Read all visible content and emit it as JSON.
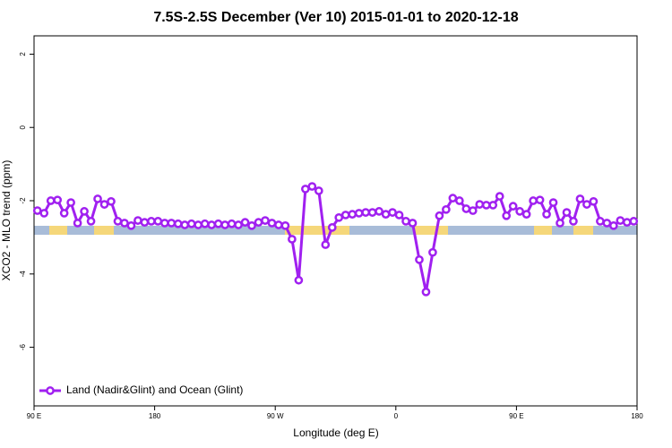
{
  "chart_data": {
    "type": "line",
    "title": "7.5S-2.5S December (Ver 10)   2015-01-01 to 2020-12-18",
    "xlabel": "Longitude (deg E)",
    "ylabel": "XCO2 - MLO trend (ppm)",
    "xlim": [
      90,
      540
    ],
    "ylim": [
      -7.6,
      2.5
    ],
    "xticks": [
      {
        "value": 90,
        "label": "90 E"
      },
      180,
      {
        "value": 270,
        "label": "90 W"
      },
      {
        "value": 360,
        "label": "0"
      },
      {
        "value": 450,
        "label": "90 E"
      },
      {
        "value": 540,
        "label": "180"
      }
    ],
    "yticks": [
      2,
      0,
      -2,
      -4,
      -6
    ],
    "legend": "lower left",
    "x": [
      92.5,
      97.5,
      102.5,
      107.5,
      112.5,
      117.5,
      122.5,
      127.5,
      132.5,
      137.5,
      142.5,
      147.5,
      152.5,
      157.5,
      162.5,
      167.5,
      172.5,
      177.5,
      182.5,
      187.5,
      192.5,
      197.5,
      202.5,
      207.5,
      212.5,
      217.5,
      222.5,
      227.5,
      232.5,
      237.5,
      242.5,
      247.5,
      252.5,
      257.5,
      262.5,
      267.5,
      272.5,
      277.5,
      282.5,
      287.5,
      292.5,
      297.5,
      302.5,
      307.5,
      312.5,
      317.5,
      322.5,
      327.5,
      332.5,
      337.5,
      342.5,
      347.5,
      352.5,
      357.5,
      362.5,
      367.5,
      372.5,
      377.5,
      382.5,
      387.5,
      392.5,
      397.5,
      402.5,
      407.5,
      412.5,
      417.5,
      422.5,
      427.5,
      432.5,
      437.5,
      442.5,
      447.5,
      452.5,
      457.5,
      462.5,
      467.5,
      472.5,
      477.5,
      482.5,
      487.5,
      492.5,
      497.5,
      502.5,
      507.5,
      512.5,
      517.5,
      522.5,
      527.5,
      532.5,
      537.5
    ],
    "series": [
      {
        "name": "Land (Nadir&Glint) and Ocean (Glint)",
        "color": "#a020f0",
        "values": [
          -2.27,
          -2.34,
          -2.0,
          -1.98,
          -2.34,
          -2.05,
          -2.61,
          -2.29,
          -2.56,
          -1.95,
          -2.1,
          -2.02,
          -2.56,
          -2.61,
          -2.68,
          -2.54,
          -2.59,
          -2.56,
          -2.56,
          -2.61,
          -2.61,
          -2.63,
          -2.66,
          -2.63,
          -2.66,
          -2.63,
          -2.66,
          -2.63,
          -2.66,
          -2.63,
          -2.66,
          -2.59,
          -2.68,
          -2.59,
          -2.54,
          -2.61,
          -2.66,
          -2.68,
          -3.05,
          -4.17,
          -1.68,
          -1.61,
          -1.73,
          -3.2,
          -2.73,
          -2.46,
          -2.39,
          -2.37,
          -2.34,
          -2.32,
          -2.32,
          -2.29,
          -2.37,
          -2.32,
          -2.39,
          -2.56,
          -2.61,
          -3.61,
          -4.49,
          -3.41,
          -2.41,
          -2.24,
          -1.93,
          -2.0,
          -2.22,
          -2.27,
          -2.1,
          -2.12,
          -2.12,
          -1.88,
          -2.41,
          -2.15,
          -2.29,
          -2.37,
          -2.0,
          -1.98,
          -2.37,
          -2.05,
          -2.61,
          -2.32,
          -2.56,
          -1.95,
          -2.1,
          -2.02,
          -2.56,
          -2.61,
          -2.68,
          -2.54,
          -2.59,
          -2.56
        ]
      }
    ]
  }
}
